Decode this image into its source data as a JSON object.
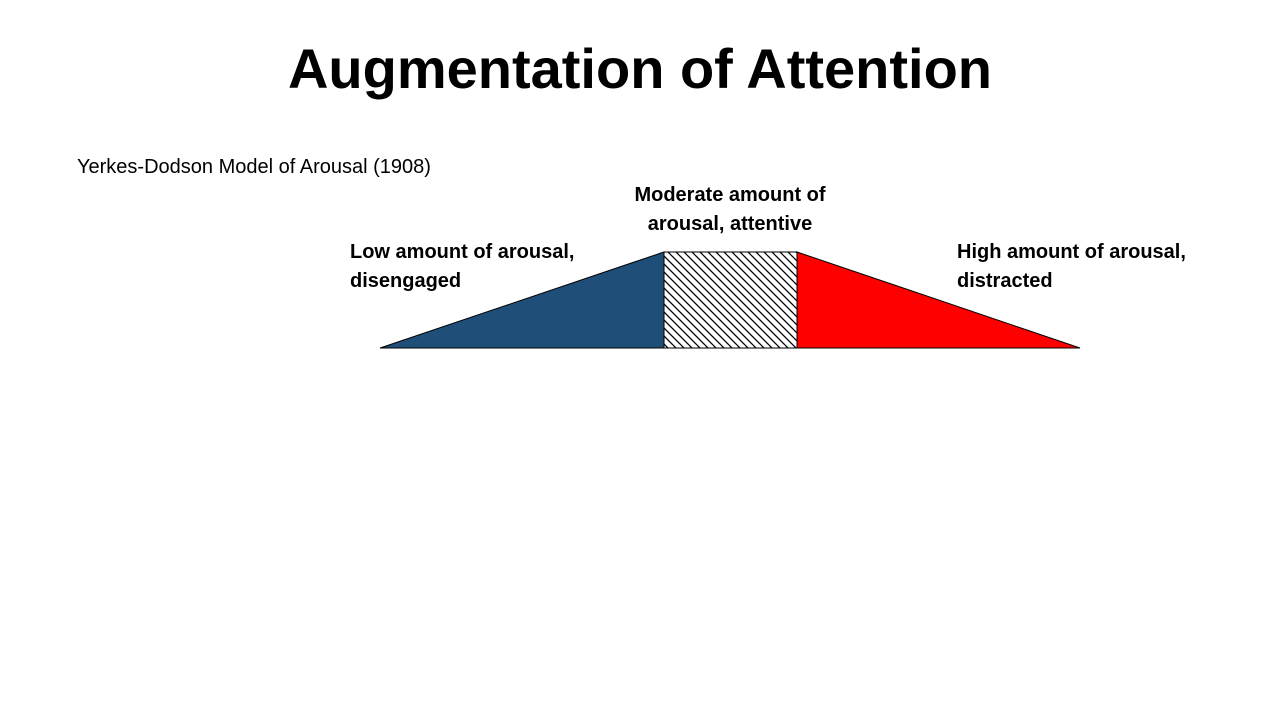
{
  "slide": {
    "title": "Augmentation of Attention",
    "subtitle": "Yerkes-Dodson Model of Arousal (1908)"
  },
  "diagram": {
    "low": {
      "line1": "Low amount of arousal,",
      "line2": "disengaged",
      "color": "#1f4e79"
    },
    "moderate": {
      "line1": "Moderate amount of",
      "line2": "arousal, attentive",
      "fill": "diagonal-hatch"
    },
    "high": {
      "line1": "High amount of arousal,",
      "line2": "distracted",
      "color": "#ff0000"
    }
  }
}
